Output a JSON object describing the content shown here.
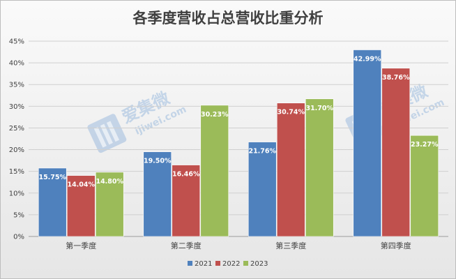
{
  "chart_data": {
    "type": "bar",
    "title": "各季度营收占总营收比重分析",
    "categories": [
      "第一季度",
      "第二季度",
      "第三季度",
      "第四季度"
    ],
    "series": [
      {
        "name": "2021",
        "color": "#4f81bd",
        "values": [
          15.75,
          19.5,
          21.76,
          42.99
        ],
        "labels": [
          "15.75%",
          "19.50%",
          "21.76%",
          "42.99%"
        ]
      },
      {
        "name": "2022",
        "color": "#c0504d",
        "values": [
          14.04,
          16.46,
          30.74,
          38.76
        ],
        "labels": [
          "14.04%",
          "16.46%",
          "30.74%",
          "38.76%"
        ]
      },
      {
        "name": "2023",
        "color": "#9bbb59",
        "values": [
          14.8,
          30.23,
          31.7,
          23.27
        ],
        "labels": [
          "14.80%",
          "30.23%",
          "31.70%",
          "23.27%"
        ]
      }
    ],
    "y_ticks": [
      "0%",
      "5%",
      "10%",
      "15%",
      "20%",
      "25%",
      "30%",
      "35%",
      "40%",
      "45%"
    ],
    "ylim": [
      0,
      45
    ],
    "ytick_step": 5,
    "grid": true,
    "legend": "bottom"
  },
  "watermark": {
    "brand": "爱集微",
    "url": "ijiwei.com",
    "icon": "jiwei-logo-icon"
  }
}
